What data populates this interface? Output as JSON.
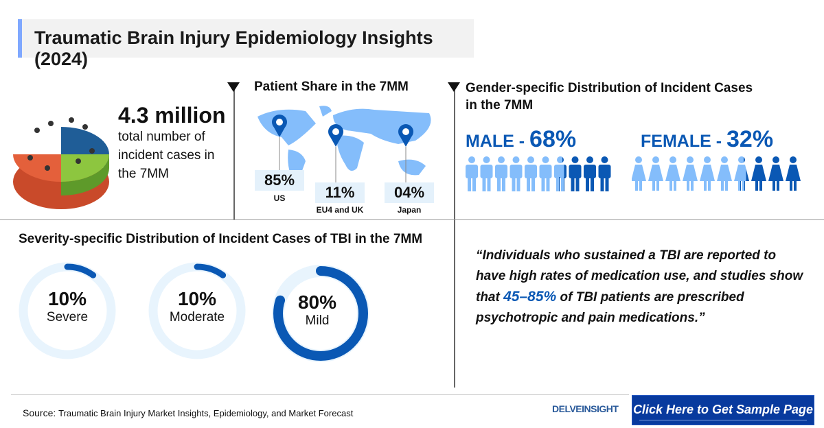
{
  "title": "Traumatic Brain Injury Epidemiology Insights (2024)",
  "incidence": {
    "value": "4.3 million",
    "description": "total number of incident cases in the 7MM"
  },
  "patient_share": {
    "heading": "Patient Share in the 7MM",
    "regions": [
      {
        "pct": "85%",
        "label": "US"
      },
      {
        "pct": "11%",
        "label": "EU4 and UK"
      },
      {
        "pct": "04%",
        "label": "Japan"
      }
    ]
  },
  "gender": {
    "heading": "Gender-specific Distribution of Incident Cases in the 7MM",
    "male_label": "MALE - ",
    "male_pct": "68%",
    "female_label": "FEMALE - ",
    "female_pct": "32%",
    "male_share": 68,
    "female_share": 32,
    "icons_per_group": 10
  },
  "severity": {
    "heading": "Severity-specific Distribution of Incident Cases of TBI in the 7MM",
    "items": [
      {
        "pct": "10%",
        "label": "Severe",
        "value": 10
      },
      {
        "pct": "10%",
        "label": "Moderate",
        "value": 10
      },
      {
        "pct": "80%",
        "label": "Mild",
        "value": 80
      }
    ]
  },
  "quote": {
    "before": "“Individuals who sustained a TBI are reported to have high rates of medication use, and studies show that ",
    "highlight": "45–85%",
    "after": " of TBI patients are prescribed psychotropic and pain medications.”"
  },
  "footer": {
    "source_label": "Source:",
    "source_text": "Traumatic Brain Injury Market Insights, Epidemiology, and Market Forecast",
    "logo": "DELVEINSIGHT",
    "cta": "Click Here to Get Sample Page"
  },
  "colors": {
    "accent": "#0a58b4",
    "light": "#84bdfb",
    "ring_bg": "#e8f4fd",
    "ring": "#0a58b4",
    "button": "#083a9e"
  }
}
